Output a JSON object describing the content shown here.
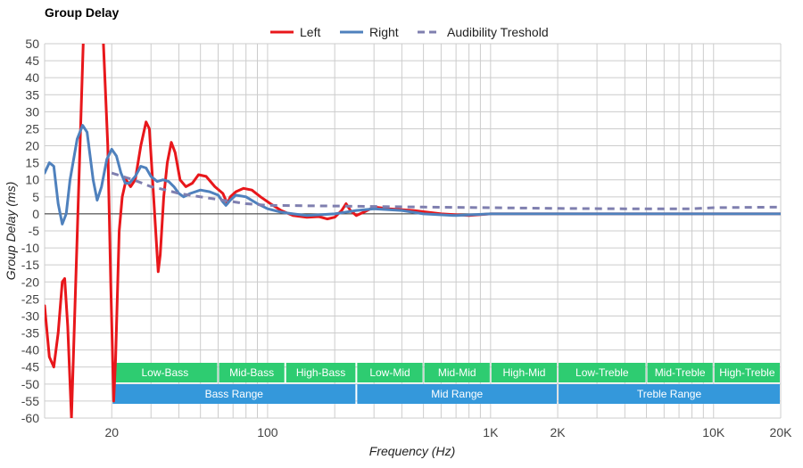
{
  "chart_data": {
    "type": "line",
    "title": "Group Delay",
    "xlabel": "Frequency (Hz)",
    "ylabel": "Group Delay (ms)",
    "x_scale": "log",
    "xlim": [
      10,
      20000
    ],
    "ylim": [
      -60,
      50
    ],
    "y_ticks": [
      50,
      45,
      40,
      35,
      30,
      25,
      20,
      15,
      10,
      5,
      0,
      -5,
      -10,
      -15,
      -20,
      -25,
      -30,
      -35,
      -40,
      -45,
      -50,
      -55,
      -60
    ],
    "x_tick_labels": [
      {
        "x": 20,
        "label": "20"
      },
      {
        "x": 100,
        "label": "100"
      },
      {
        "x": 1000,
        "label": "1K"
      },
      {
        "x": 2000,
        "label": "2K"
      },
      {
        "x": 10000,
        "label": "10K"
      },
      {
        "x": 20000,
        "label": "20K"
      }
    ],
    "grid": true,
    "legend_position": "top-center",
    "series": [
      {
        "name": "Left",
        "color": "#e8171b",
        "dash": "solid",
        "points": [
          [
            10,
            -27
          ],
          [
            10.5,
            -42
          ],
          [
            11,
            -45
          ],
          [
            11.5,
            -35
          ],
          [
            12,
            -20
          ],
          [
            12.3,
            -19
          ],
          [
            12.7,
            -33
          ],
          [
            13.2,
            -60
          ],
          [
            15,
            56
          ],
          [
            17,
            56
          ],
          [
            18.3,
            52
          ],
          [
            19.2,
            20
          ],
          [
            19.8,
            -20
          ],
          [
            20.4,
            -55
          ],
          [
            20.8,
            -43
          ],
          [
            21.6,
            -5
          ],
          [
            22.3,
            5
          ],
          [
            23.2,
            10
          ],
          [
            24.3,
            8
          ],
          [
            25.5,
            10
          ],
          [
            27,
            20
          ],
          [
            28.5,
            27
          ],
          [
            29.5,
            25
          ],
          [
            30.5,
            10
          ],
          [
            31.5,
            -5
          ],
          [
            32.3,
            -17
          ],
          [
            33,
            -12
          ],
          [
            34.2,
            5
          ],
          [
            35.5,
            15
          ],
          [
            37,
            21
          ],
          [
            38.5,
            18
          ],
          [
            40.5,
            10
          ],
          [
            43,
            8
          ],
          [
            46,
            9
          ],
          [
            49,
            11.5
          ],
          [
            53,
            11
          ],
          [
            58,
            8
          ],
          [
            63,
            6
          ],
          [
            66,
            3
          ],
          [
            68,
            5
          ],
          [
            72,
            6.5
          ],
          [
            78,
            7.5
          ],
          [
            85,
            7
          ],
          [
            93,
            5
          ],
          [
            103,
            3
          ],
          [
            115,
            1
          ],
          [
            130,
            -0.5
          ],
          [
            150,
            -1
          ],
          [
            170,
            -0.8
          ],
          [
            185,
            -1.5
          ],
          [
            200,
            -1
          ],
          [
            215,
            1
          ],
          [
            225,
            3
          ],
          [
            235,
            1
          ],
          [
            250,
            -0.5
          ],
          [
            270,
            0.5
          ],
          [
            300,
            2
          ],
          [
            350,
            1.5
          ],
          [
            450,
            1
          ],
          [
            600,
            0
          ],
          [
            800,
            -0.5
          ],
          [
            1000,
            0
          ],
          [
            2000,
            0
          ],
          [
            5000,
            0
          ],
          [
            10000,
            0
          ],
          [
            20000,
            0
          ]
        ]
      },
      {
        "name": "Right",
        "color": "#4f81bd",
        "dash": "solid",
        "points": [
          [
            10,
            12
          ],
          [
            10.5,
            15
          ],
          [
            11,
            14
          ],
          [
            11.5,
            3
          ],
          [
            12,
            -3
          ],
          [
            12.5,
            0
          ],
          [
            13,
            10
          ],
          [
            14,
            22
          ],
          [
            14.8,
            26
          ],
          [
            15.5,
            24
          ],
          [
            16.5,
            10
          ],
          [
            17.2,
            4
          ],
          [
            18,
            8
          ],
          [
            19,
            16
          ],
          [
            20,
            19
          ],
          [
            21,
            17
          ],
          [
            22,
            12
          ],
          [
            23,
            9
          ],
          [
            24,
            9
          ],
          [
            25.5,
            11
          ],
          [
            27,
            14
          ],
          [
            28.5,
            13.5
          ],
          [
            30,
            11
          ],
          [
            32,
            9.5
          ],
          [
            34,
            10
          ],
          [
            36,
            9.5
          ],
          [
            38,
            8
          ],
          [
            40,
            6
          ],
          [
            42,
            5
          ],
          [
            45,
            6
          ],
          [
            50,
            7
          ],
          [
            55,
            6.5
          ],
          [
            60,
            5.5
          ],
          [
            63,
            3.5
          ],
          [
            65,
            2.5
          ],
          [
            68,
            4
          ],
          [
            72,
            5.5
          ],
          [
            80,
            5
          ],
          [
            90,
            3
          ],
          [
            100,
            1.5
          ],
          [
            115,
            0.5
          ],
          [
            130,
            0
          ],
          [
            150,
            -0.5
          ],
          [
            200,
            0
          ],
          [
            250,
            1
          ],
          [
            300,
            1.5
          ],
          [
            400,
            1
          ],
          [
            500,
            0
          ],
          [
            700,
            -0.5
          ],
          [
            1000,
            0
          ],
          [
            2000,
            0
          ],
          [
            5000,
            0
          ],
          [
            10000,
            0
          ],
          [
            20000,
            0
          ]
        ]
      },
      {
        "name": "Audibility Treshold",
        "color": "#7f7faf",
        "dash": "dashed",
        "points": [
          [
            20,
            12
          ],
          [
            25,
            10
          ],
          [
            30,
            8
          ],
          [
            35,
            7
          ],
          [
            40,
            6
          ],
          [
            50,
            5
          ],
          [
            63,
            4
          ],
          [
            80,
            3
          ],
          [
            100,
            2.5
          ],
          [
            200,
            2.3
          ],
          [
            500,
            2
          ],
          [
            1000,
            1.8
          ],
          [
            2000,
            1.6
          ],
          [
            4000,
            1.5
          ],
          [
            8000,
            1.5
          ],
          [
            10000,
            1.8
          ],
          [
            20000,
            2
          ]
        ]
      }
    ],
    "range_bands": [
      {
        "label": "Low-Bass",
        "from": 20,
        "to": 60,
        "row": 1,
        "color": "#2ecc71"
      },
      {
        "label": "Mid-Bass",
        "from": 60,
        "to": 120,
        "row": 1,
        "color": "#2ecc71"
      },
      {
        "label": "High-Bass",
        "from": 120,
        "to": 250,
        "row": 1,
        "color": "#2ecc71"
      },
      {
        "label": "Low-Mid",
        "from": 250,
        "to": 500,
        "row": 1,
        "color": "#2ecc71"
      },
      {
        "label": "Mid-Mid",
        "from": 500,
        "to": 1000,
        "row": 1,
        "color": "#2ecc71"
      },
      {
        "label": "High-Mid",
        "from": 1000,
        "to": 2000,
        "row": 1,
        "color": "#2ecc71"
      },
      {
        "label": "Low-Treble",
        "from": 2000,
        "to": 5000,
        "row": 1,
        "color": "#2ecc71"
      },
      {
        "label": "Mid-Treble",
        "from": 5000,
        "to": 10000,
        "row": 1,
        "color": "#2ecc71"
      },
      {
        "label": "High-Treble",
        "from": 10000,
        "to": 20000,
        "row": 1,
        "color": "#2ecc71"
      },
      {
        "label": "Bass Range",
        "from": 20,
        "to": 250,
        "row": 2,
        "color": "#3498db"
      },
      {
        "label": "Mid Range",
        "from": 250,
        "to": 2000,
        "row": 2,
        "color": "#3498db"
      },
      {
        "label": "Treble Range",
        "from": 2000,
        "to": 20000,
        "row": 2,
        "color": "#3498db"
      }
    ]
  }
}
